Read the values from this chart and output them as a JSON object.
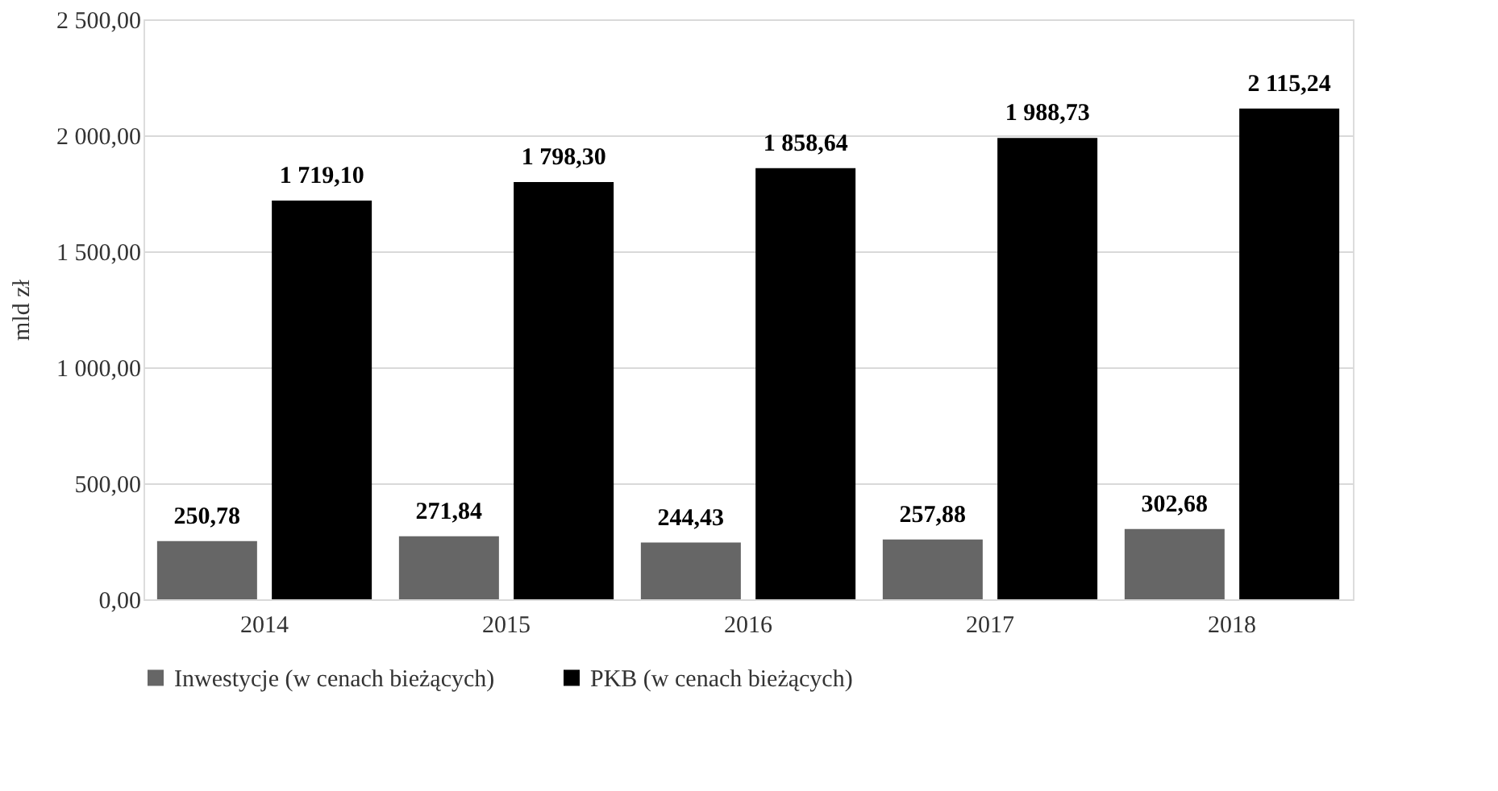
{
  "chart_data": {
    "type": "bar",
    "ylabel": "mld zł",
    "categories": [
      "2014",
      "2015",
      "2016",
      "2017",
      "2018"
    ],
    "series": [
      {
        "name": "Inwestycje (w cenach bieżących)",
        "color": "#666666",
        "values": [
          250.78,
          271.84,
          244.43,
          257.88,
          302.68
        ],
        "value_labels": [
          "250,78",
          "271,84",
          "244,43",
          "257,88",
          "302,68"
        ]
      },
      {
        "name": "PKB (w cenach bieżących)",
        "color": "#000000",
        "values": [
          1719.1,
          1798.3,
          1858.64,
          1988.73,
          2115.24
        ],
        "value_labels": [
          "1 719,10",
          "1 798,30",
          "1 858,64",
          "1 988,73",
          "2 115,24"
        ]
      }
    ],
    "ylim": [
      0,
      2500
    ],
    "yticks": [
      {
        "value": 0,
        "label": "0,00"
      },
      {
        "value": 500,
        "label": "500,00"
      },
      {
        "value": 1000,
        "label": "1 000,00"
      },
      {
        "value": 1500,
        "label": "1 500,00"
      },
      {
        "value": 2000,
        "label": "2 000,00"
      },
      {
        "value": 2500,
        "label": "2 500,00"
      }
    ],
    "grid": "y",
    "legend": "bottom"
  }
}
